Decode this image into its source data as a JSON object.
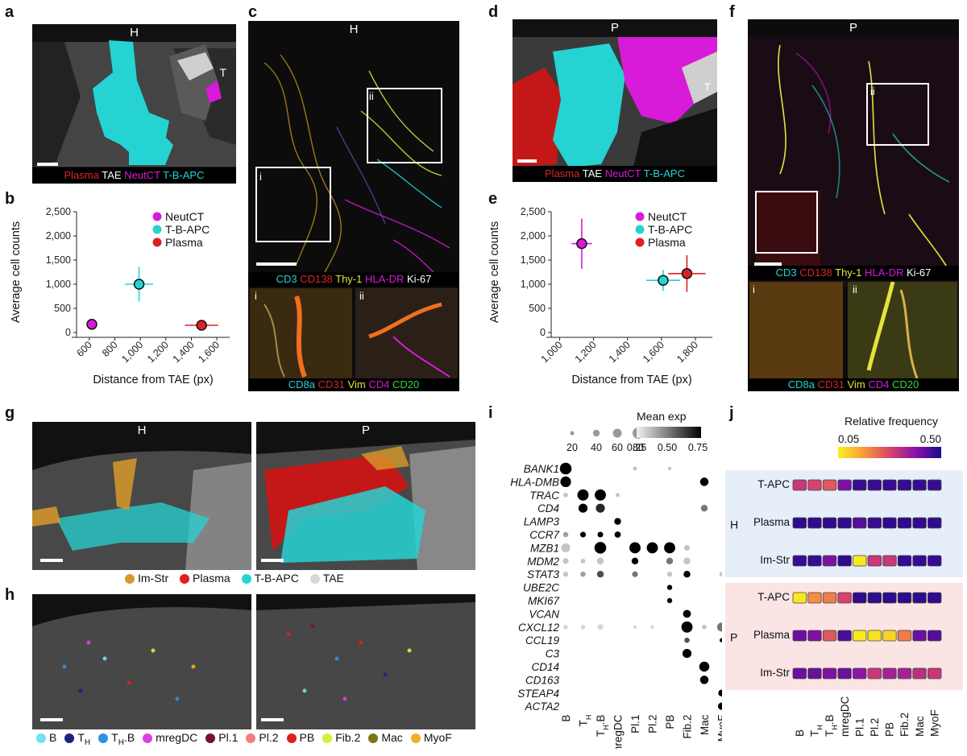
{
  "panels": {
    "a": {
      "letter": "a",
      "header": "H",
      "corner": "T",
      "legend": [
        {
          "text": "Plasma",
          "color": "#d62728"
        },
        {
          "text": "TAE",
          "color": "#ffffff"
        },
        {
          "text": "NeutCT",
          "color": "#d81bd8"
        },
        {
          "text": "T-B-APC",
          "color": "#26d3d3"
        }
      ]
    },
    "b": {
      "letter": "b"
    },
    "c": {
      "letter": "c",
      "header": "H",
      "inset_i": "i",
      "inset_ii": "ii",
      "legend1": [
        {
          "text": "CD3",
          "color": "#26d3d3"
        },
        {
          "text": "CD138",
          "color": "#d62728"
        },
        {
          "text": "Thy-1",
          "color": "#e4e43a"
        },
        {
          "text": "HLA-DR",
          "color": "#d81bd8"
        },
        {
          "text": "Ki-67",
          "color": "#ffffff"
        }
      ],
      "legend2": [
        {
          "text": "CD8a",
          "color": "#26d3d3"
        },
        {
          "text": "CD31",
          "color": "#d62728"
        },
        {
          "text": "Vim",
          "color": "#e4e43a"
        },
        {
          "text": "CD4",
          "color": "#d81bd8"
        },
        {
          "text": "CD20",
          "color": "#3ad33a"
        }
      ]
    },
    "d": {
      "letter": "d",
      "header": "P",
      "corner": "T",
      "legend": [
        {
          "text": "Plasma",
          "color": "#d62728"
        },
        {
          "text": "TAE",
          "color": "#ffffff"
        },
        {
          "text": "NeutCT",
          "color": "#d81bd8"
        },
        {
          "text": "T-B-APC",
          "color": "#26d3d3"
        }
      ]
    },
    "e": {
      "letter": "e"
    },
    "f": {
      "letter": "f",
      "header": "P",
      "inset_i": "i",
      "inset_ii": "ii",
      "legend1": [
        {
          "text": "CD3",
          "color": "#26d3d3"
        },
        {
          "text": "CD138",
          "color": "#d62728"
        },
        {
          "text": "Thy-1",
          "color": "#e4e43a"
        },
        {
          "text": "HLA-DR",
          "color": "#d81bd8"
        },
        {
          "text": "Ki-67",
          "color": "#ffffff"
        }
      ],
      "legend2": [
        {
          "text": "CD8a",
          "color": "#26d3d3"
        },
        {
          "text": "CD31",
          "color": "#d62728"
        },
        {
          "text": "Vim",
          "color": "#e4e43a"
        },
        {
          "text": "CD4",
          "color": "#d81bd8"
        },
        {
          "text": "CD20",
          "color": "#3ad33a"
        }
      ]
    },
    "g": {
      "letter": "g",
      "header_left": "H",
      "header_right": "P",
      "legend": [
        {
          "text": "Im-Str",
          "color": "#d89a2a"
        },
        {
          "text": "Plasma",
          "color": "#e02020"
        },
        {
          "text": "T-B-APC",
          "color": "#26d3d3"
        },
        {
          "text": "TAE",
          "color": "#d8d8d8"
        }
      ]
    },
    "h": {
      "letter": "h",
      "legend": [
        {
          "text": "B",
          "color": "#6fe3f0"
        },
        {
          "text": "T",
          "sub": "H",
          "color": "#1a237e"
        },
        {
          "text": "T",
          "sub": "H",
          "tail": ".B",
          "color": "#2f8fe0"
        },
        {
          "text": "mregDC",
          "color": "#e040e0"
        },
        {
          "text": "Pl.1",
          "color": "#7a1030"
        },
        {
          "text": "Pl.2",
          "color": "#f08080"
        },
        {
          "text": "PB",
          "color": "#e02020"
        },
        {
          "text": "Fib.2",
          "color": "#d4f03a"
        },
        {
          "text": "Mac",
          "color": "#7a7a10"
        },
        {
          "text": "MyoF",
          "color": "#f0b020"
        }
      ]
    },
    "i": {
      "letter": "i",
      "size_title": "",
      "size_values": [
        "20",
        "40",
        "60",
        "80"
      ],
      "color_title": "Mean exp",
      "color_ticks": [
        "0.25",
        "0.50",
        "0.75"
      ]
    },
    "j": {
      "letter": "j",
      "title": "Relative frequency",
      "ticks": [
        "0.05",
        "0.50"
      ],
      "group_H": "H",
      "group_P": "P",
      "rows": [
        "T-APC",
        "Plasma",
        "Im-Str"
      ]
    }
  },
  "chart_data": [
    {
      "id": "b",
      "type": "scatter",
      "xlabel": "Distance from TAE (px)",
      "ylabel": "Average cell counts",
      "xlim": [
        500,
        1700
      ],
      "ylim": [
        0,
        2500
      ],
      "xticks": [
        "600",
        "800",
        "1,000",
        "1,200",
        "1,400",
        "1,600"
      ],
      "yticks": [
        "0",
        "500",
        "1,000",
        "1,500",
        "2,000",
        "2,500"
      ],
      "legend_position": "top-right",
      "series": [
        {
          "name": "NeutCT",
          "color": "#d81bd8",
          "x": 620,
          "y": 170,
          "xerr": 30,
          "yerr": 40
        },
        {
          "name": "T-B-APC",
          "color": "#26d3d3",
          "x": 990,
          "y": 1000,
          "xerr": 110,
          "yerr": 360
        },
        {
          "name": "Plasma",
          "color": "#e02020",
          "x": 1480,
          "y": 150,
          "xerr": 130,
          "yerr": 40
        }
      ]
    },
    {
      "id": "e",
      "type": "scatter",
      "xlabel": "Distance from TAE (px)",
      "ylabel": "Average cell counts",
      "xlim": [
        950,
        1900
      ],
      "ylim": [
        0,
        2500
      ],
      "xticks": [
        "1,000",
        "1,200",
        "1,400",
        "1,600",
        "1,800"
      ],
      "yticks": [
        "0",
        "500",
        "1,000",
        "1,500",
        "2,000",
        "2,500"
      ],
      "legend_position": "top-right",
      "series": [
        {
          "name": "NeutCT",
          "color": "#d81bd8",
          "x": 1130,
          "y": 1840,
          "xerr": 60,
          "yerr": 520
        },
        {
          "name": "T-B-APC",
          "color": "#26d3d3",
          "x": 1610,
          "y": 1080,
          "xerr": 100,
          "yerr": 220
        },
        {
          "name": "Plasma",
          "color": "#e02020",
          "x": 1750,
          "y": 1220,
          "xerr": 110,
          "yerr": 380
        }
      ]
    },
    {
      "id": "i",
      "type": "dotplot",
      "genes": [
        "BANK1",
        "HLA-DMB",
        "TRAC",
        "CD4",
        "LAMP3",
        "CCR7",
        "MZB1",
        "MDM2",
        "STAT3",
        "UBE2C",
        "MKI67",
        "VCAN",
        "CXCL12",
        "CCL19",
        "C3",
        "CD14",
        "CD163",
        "STEAP4",
        "ACTA2"
      ],
      "celltypes": [
        {
          "t": "B"
        },
        {
          "t": "T",
          "sub": "H"
        },
        {
          "t": "T",
          "sub": "H",
          "tail": ".B"
        },
        {
          "t": "mregDC"
        },
        {
          "t": "Pl.1"
        },
        {
          "t": "Pl.2"
        },
        {
          "t": "PB"
        },
        {
          "t": "Fib.2"
        },
        {
          "t": "Mac"
        },
        {
          "t": "MyoF"
        }
      ],
      "points": [
        [
          0,
          0,
          85,
          0.9
        ],
        [
          0,
          4,
          15,
          0.3
        ],
        [
          0,
          6,
          10,
          0.3
        ],
        [
          1,
          0,
          75,
          0.9
        ],
        [
          1,
          8,
          55,
          0.85
        ],
        [
          2,
          0,
          20,
          0.3
        ],
        [
          2,
          1,
          80,
          0.9
        ],
        [
          2,
          2,
          80,
          0.9
        ],
        [
          2,
          3,
          15,
          0.3
        ],
        [
          3,
          1,
          60,
          0.9
        ],
        [
          3,
          2,
          60,
          0.7
        ],
        [
          3,
          8,
          40,
          0.5
        ],
        [
          4,
          3,
          40,
          0.9
        ],
        [
          5,
          0,
          25,
          0.4
        ],
        [
          5,
          1,
          30,
          0.9
        ],
        [
          5,
          2,
          30,
          0.9
        ],
        [
          5,
          3,
          35,
          0.9
        ],
        [
          6,
          0,
          60,
          0.3
        ],
        [
          6,
          2,
          85,
          0.9
        ],
        [
          6,
          4,
          80,
          0.9
        ],
        [
          6,
          5,
          80,
          0.9
        ],
        [
          6,
          6,
          80,
          0.9
        ],
        [
          6,
          7,
          30,
          0.3
        ],
        [
          7,
          0,
          30,
          0.3
        ],
        [
          7,
          1,
          20,
          0.3
        ],
        [
          7,
          2,
          40,
          0.3
        ],
        [
          7,
          4,
          40,
          0.9
        ],
        [
          7,
          6,
          40,
          0.5
        ],
        [
          7,
          7,
          40,
          0.3
        ],
        [
          8,
          0,
          25,
          0.3
        ],
        [
          8,
          1,
          25,
          0.4
        ],
        [
          8,
          2,
          40,
          0.6
        ],
        [
          8,
          4,
          30,
          0.5
        ],
        [
          8,
          6,
          25,
          0.3
        ],
        [
          8,
          7,
          40,
          0.9
        ],
        [
          8,
          9,
          20,
          0.3
        ],
        [
          9,
          6,
          25,
          0.9
        ],
        [
          10,
          6,
          25,
          0.9
        ],
        [
          11,
          7,
          50,
          0.9
        ],
        [
          12,
          0,
          20,
          0.25
        ],
        [
          12,
          1,
          20,
          0.25
        ],
        [
          12,
          2,
          30,
          0.25
        ],
        [
          12,
          4,
          10,
          0.25
        ],
        [
          12,
          5,
          10,
          0.25
        ],
        [
          12,
          7,
          80,
          0.9
        ],
        [
          12,
          8,
          20,
          0.3
        ],
        [
          12,
          9,
          60,
          0.5
        ],
        [
          13,
          7,
          25,
          0.6
        ],
        [
          13,
          9,
          15,
          0.8
        ],
        [
          14,
          7,
          60,
          0.9
        ],
        [
          15,
          8,
          70,
          0.9
        ],
        [
          16,
          8,
          55,
          0.9
        ],
        [
          17,
          9,
          40,
          0.9
        ],
        [
          18,
          9,
          45,
          0.9
        ]
      ]
    },
    {
      "id": "j",
      "type": "heatmap",
      "columns": [
        {
          "t": "B"
        },
        {
          "t": "T",
          "sub": "H"
        },
        {
          "t": "T",
          "sub": "H",
          "tail": ".B"
        },
        {
          "t": "mregDC"
        },
        {
          "t": "Pl.1"
        },
        {
          "t": "Pl.2"
        },
        {
          "t": "PB"
        },
        {
          "t": "Fib.2"
        },
        {
          "t": "Mac"
        },
        {
          "t": "MyoF"
        }
      ],
      "groups": [
        {
          "group": "H",
          "rows": [
            {
              "name": "T-APC",
              "values": [
                0.3,
                0.28,
                0.25,
                0.4,
                0.47,
                0.47,
                0.47,
                0.47,
                0.47,
                0.47
              ]
            },
            {
              "name": "Plasma",
              "values": [
                0.48,
                0.48,
                0.48,
                0.48,
                0.44,
                0.47,
                0.48,
                0.48,
                0.48,
                0.48
              ]
            },
            {
              "name": "Im-Str",
              "values": [
                0.47,
                0.47,
                0.4,
                0.48,
                0.06,
                0.3,
                0.3,
                0.47,
                0.47,
                0.47
              ]
            }
          ]
        },
        {
          "group": "P",
          "rows": [
            {
              "name": "T-APC",
              "values": [
                0.06,
                0.18,
                0.2,
                0.28,
                0.48,
                0.48,
                0.48,
                0.48,
                0.48,
                0.48
              ]
            },
            {
              "name": "Plasma",
              "values": [
                0.42,
                0.4,
                0.25,
                0.45,
                0.06,
                0.07,
                0.09,
                0.2,
                0.42,
                0.44
              ]
            },
            {
              "name": "Im-Str",
              "values": [
                0.42,
                0.42,
                0.4,
                0.42,
                0.38,
                0.3,
                0.35,
                0.35,
                0.32,
                0.3
              ]
            }
          ]
        }
      ],
      "range": [
        0.05,
        0.5
      ]
    }
  ]
}
